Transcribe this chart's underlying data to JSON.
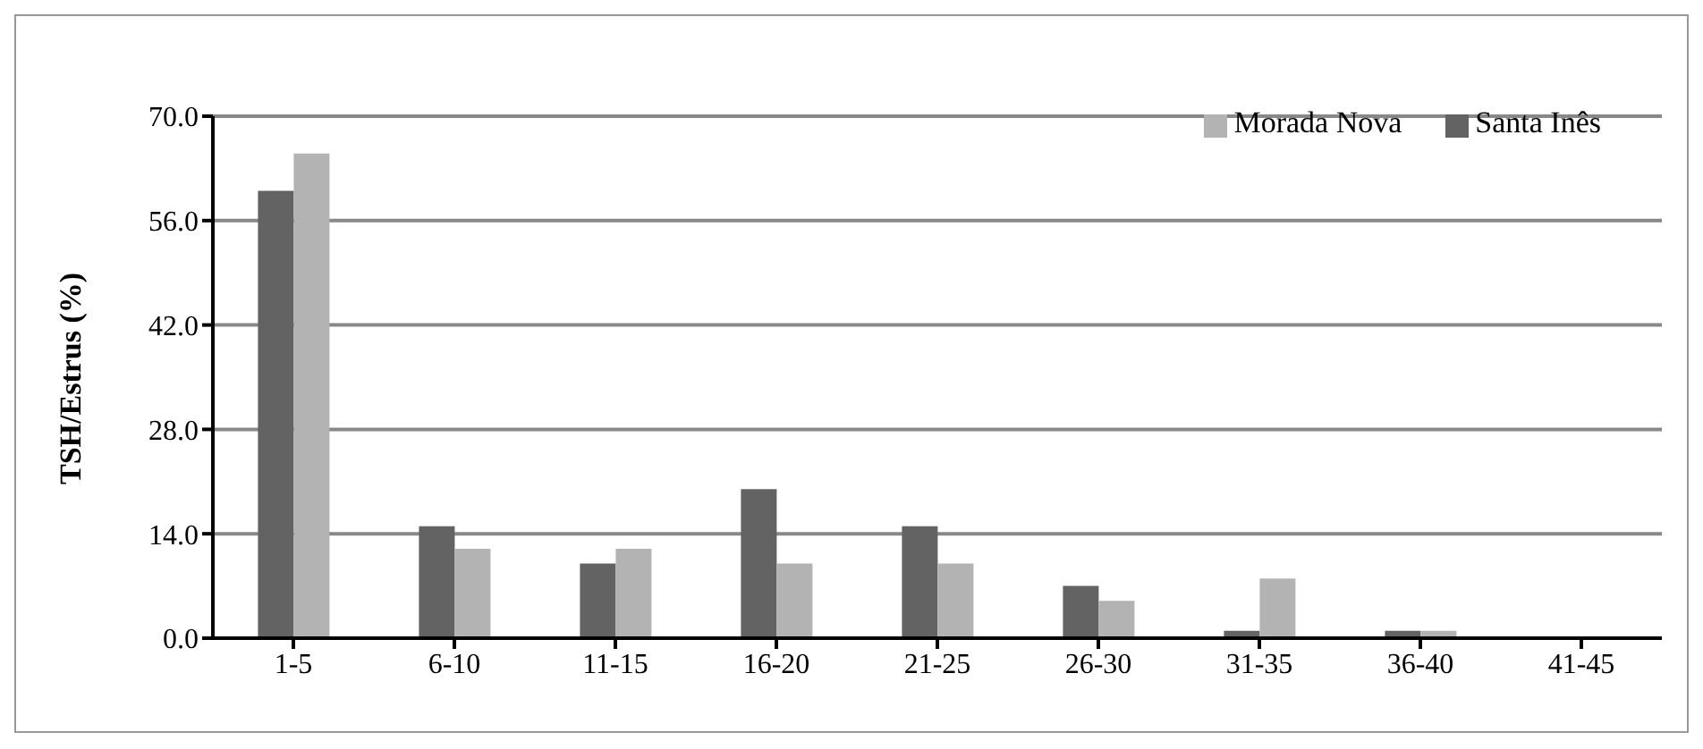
{
  "chart_data": {
    "type": "bar",
    "ylabel": "TSH/Estrus (%)",
    "categories": [
      "1-5",
      "6-10",
      "11-15",
      "16-20",
      "21-25",
      "26-30",
      "31-35",
      "36-40",
      "41-45"
    ],
    "series": [
      {
        "name": "Santa Inês",
        "color": "#636363",
        "values": [
          60,
          15,
          10,
          20,
          15,
          7,
          1,
          1,
          0
        ]
      },
      {
        "name": "Morada Nova",
        "color": "#b3b3b3",
        "values": [
          65,
          12,
          12,
          10,
          10,
          5,
          8,
          1,
          0
        ]
      }
    ],
    "ylim": [
      0,
      70
    ],
    "yticks": [
      {
        "value": 0,
        "label": "0.0"
      },
      {
        "value": 14,
        "label": "14.0"
      },
      {
        "value": 28,
        "label": "28.0"
      },
      {
        "value": 42,
        "label": "42.0"
      },
      {
        "value": 56,
        "label": "56.0"
      },
      {
        "value": 70,
        "label": "70.0"
      }
    ],
    "grid": "y",
    "legend": "top right"
  }
}
